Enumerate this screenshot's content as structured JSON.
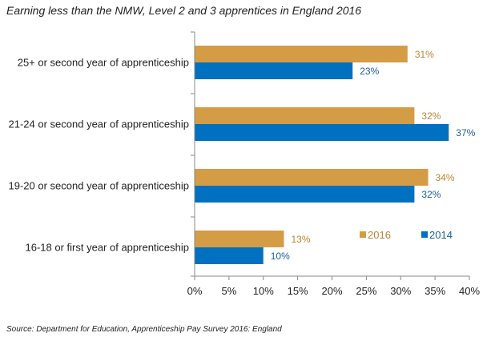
{
  "chart_data": {
    "type": "bar",
    "orientation": "horizontal",
    "title": "Earning less than the NMW, Level 2 and 3 apprentices in England 2016",
    "source": "Source: Department for Education, Apprenticeship Pay Survey 2016: England",
    "categories": [
      "25+ or second year of apprenticeship",
      "21-24 or second year of apprenticeship",
      "19-20 or second year of apprenticeship",
      "16-18 or first year of apprenticeship"
    ],
    "series": [
      {
        "name": "2016",
        "color": "#D59C46",
        "values": [
          31,
          32,
          34,
          13
        ],
        "labels": [
          "31%",
          "32%",
          "34%",
          "13%"
        ]
      },
      {
        "name": "2014",
        "color": "#0070C0",
        "values": [
          23,
          37,
          32,
          10
        ],
        "labels": [
          "23%",
          "37%",
          "32%",
          "10%"
        ]
      }
    ],
    "xlim": [
      0,
      40
    ],
    "xticks": [
      0,
      5,
      10,
      15,
      20,
      25,
      30,
      35,
      40
    ],
    "xtick_labels": [
      "0%",
      "5%",
      "10%",
      "15%",
      "20%",
      "25%",
      "30%",
      "35%",
      "40%"
    ],
    "xlabel": "",
    "ylabel": "",
    "grid": false,
    "legend": {
      "position": "inside-lower-right",
      "entries": [
        "2016",
        "2014"
      ]
    },
    "label_colors": {
      "2016": "#B8862F",
      "2014": "#1F5F97"
    }
  }
}
